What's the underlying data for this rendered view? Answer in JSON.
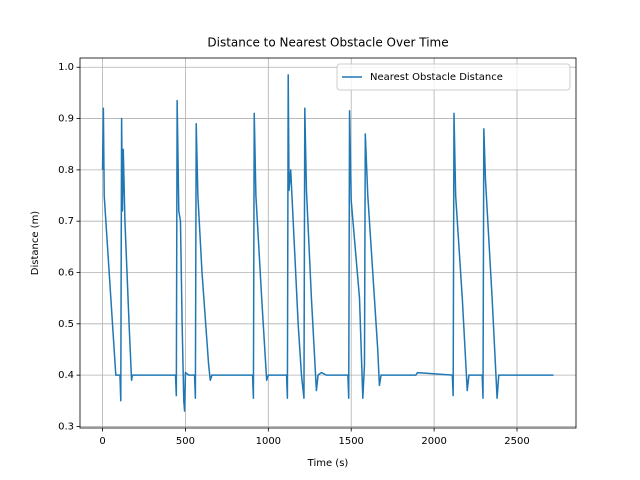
{
  "chart_data": {
    "type": "line",
    "title": "Distance to Nearest Obstacle Over Time",
    "x_label": "Time (s)",
    "y_label": "Distance (m)",
    "x": [
      0,
      5,
      10,
      40,
      70,
      80,
      105,
      110,
      115,
      120,
      125,
      135,
      160,
      175,
      180,
      440,
      445,
      450,
      460,
      470,
      480,
      490,
      495,
      500,
      520,
      555,
      560,
      565,
      575,
      600,
      640,
      650,
      660,
      905,
      910,
      915,
      925,
      960,
      990,
      1000,
      1110,
      1115,
      1120,
      1125,
      1135,
      1180,
      1200,
      1215,
      1220,
      1230,
      1260,
      1290,
      1300,
      1320,
      1350,
      1480,
      1485,
      1490,
      1500,
      1550,
      1570,
      1580,
      1585,
      1600,
      1660,
      1670,
      1680,
      1890,
      1900,
      2110,
      2115,
      2120,
      2130,
      2170,
      2200,
      2210,
      2290,
      2295,
      2300,
      2310,
      2350,
      2380,
      2390,
      2720
    ],
    "series": [
      {
        "name": "Nearest Obstacle Distance",
        "color": "#1f77b4",
        "values": [
          0.8,
          0.92,
          0.75,
          0.6,
          0.45,
          0.4,
          0.4,
          0.35,
          0.9,
          0.72,
          0.84,
          0.7,
          0.5,
          0.39,
          0.4,
          0.4,
          0.36,
          0.935,
          0.72,
          0.7,
          0.5,
          0.35,
          0.33,
          0.405,
          0.4,
          0.4,
          0.355,
          0.89,
          0.75,
          0.6,
          0.42,
          0.39,
          0.4,
          0.4,
          0.355,
          0.91,
          0.75,
          0.55,
          0.39,
          0.4,
          0.4,
          0.355,
          0.985,
          0.76,
          0.8,
          0.5,
          0.4,
          0.355,
          0.92,
          0.76,
          0.55,
          0.37,
          0.4,
          0.405,
          0.4,
          0.4,
          0.355,
          0.915,
          0.74,
          0.55,
          0.355,
          0.42,
          0.87,
          0.75,
          0.45,
          0.38,
          0.4,
          0.4,
          0.405,
          0.4,
          0.36,
          0.91,
          0.75,
          0.55,
          0.37,
          0.4,
          0.4,
          0.355,
          0.88,
          0.78,
          0.55,
          0.355,
          0.4,
          0.4
        ]
      }
    ],
    "xlim": [
      -136,
      2856
    ],
    "ylim": [
      0.297,
      1.018
    ],
    "xticks": [
      0,
      500,
      1000,
      1500,
      2000,
      2500
    ],
    "yticks": [
      0.3,
      0.4,
      0.5,
      0.6,
      0.7,
      0.8,
      0.9,
      {
        "value": 1,
        "label": "1.0"
      }
    ],
    "grid": true,
    "legend": "upper-right"
  }
}
